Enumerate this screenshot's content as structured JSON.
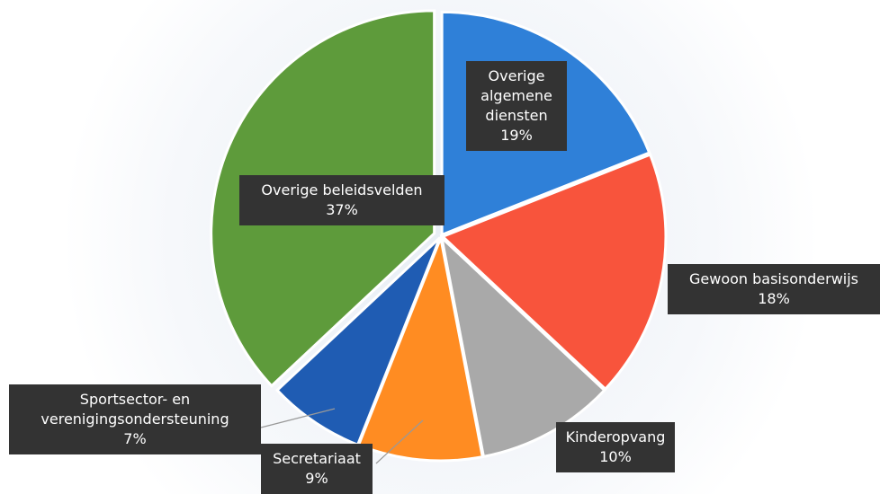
{
  "chart_data": {
    "type": "pie",
    "categories": [
      "Overige algemene diensten",
      "Gewoon basisonderwijs",
      "Kinderopvang",
      "Secretariaat",
      "Sportsector- en verenigingsondersteuning",
      "Overige beleidsvelden"
    ],
    "values": [
      19,
      18,
      10,
      9,
      7,
      37
    ],
    "value_labels": [
      "19%",
      "18%",
      "10%",
      "9%",
      "7%",
      "37%"
    ],
    "colors": [
      "#2f80d8",
      "#f8543c",
      "#a9a9a9",
      "#ff8c22",
      "#1f5cb3",
      "#5e9b3b"
    ]
  }
}
